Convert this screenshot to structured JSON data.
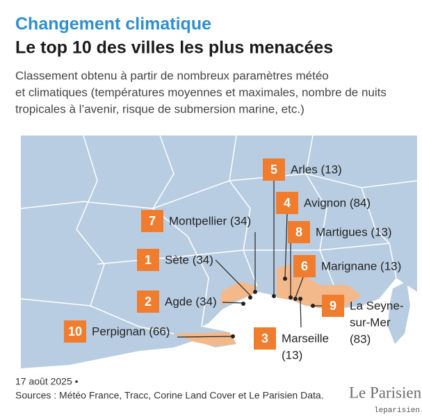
{
  "header": {
    "kicker": "Changement climatique",
    "title": "Le top 10 des villes les plus menacées",
    "description_lines": [
      "Classement obtenu à partir de nombreux paramètres météo",
      "et climatiques (températures moyennes et maximales, nombre de nuits",
      "tropicales à l’avenir, risque de submersion marine, etc.)"
    ]
  },
  "cities": [
    {
      "rank": 5,
      "lines": [
        "Arles (13)"
      ]
    },
    {
      "rank": 4,
      "lines": [
        "Avignon (84)"
      ]
    },
    {
      "rank": 8,
      "lines": [
        "Martigues (13)"
      ]
    },
    {
      "rank": 7,
      "lines": [
        "Montpellier (34)"
      ]
    },
    {
      "rank": 1,
      "lines": [
        "Sète (34)"
      ]
    },
    {
      "rank": 6,
      "lines": [
        "Marignane (13)"
      ]
    },
    {
      "rank": 2,
      "lines": [
        "Agde (34)"
      ]
    },
    {
      "rank": 9,
      "lines": [
        "La Seyne-",
        "sur-Mer",
        "(83)"
      ]
    },
    {
      "rank": 10,
      "lines": [
        "Perpignan (66)"
      ]
    },
    {
      "rank": 3,
      "lines": [
        "Marseille",
        "(13)"
      ]
    }
  ],
  "footer": {
    "date": "17 août 2025 •",
    "sources": "Sources : Météo France, Tracc, Corine Land Cover et Le Parisien Data.",
    "brand": "Le Parisien",
    "url": "leparisien.fr"
  }
}
